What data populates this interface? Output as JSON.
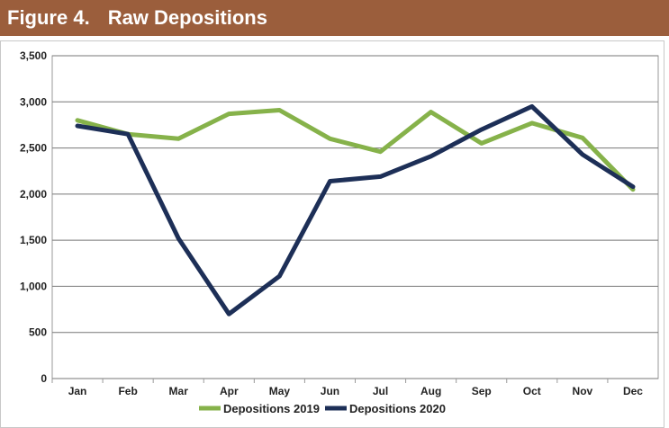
{
  "figure": {
    "number": "Figure 4.",
    "title": "Raw Depositions"
  },
  "colors": {
    "title_bar": "#9b5e3c",
    "series_2019": "#86b24a",
    "series_2020": "#1d2f57",
    "grid": "#777777"
  },
  "chart_data": {
    "type": "line",
    "title": "Raw Depositions",
    "xlabel": "",
    "ylabel": "",
    "categories": [
      "Jan",
      "Feb",
      "Mar",
      "Apr",
      "May",
      "Jun",
      "Jul",
      "Aug",
      "Sep",
      "Oct",
      "Nov",
      "Dec"
    ],
    "ylim": [
      0,
      3500
    ],
    "yticks": [
      0,
      500,
      1000,
      1500,
      2000,
      2500,
      3000,
      3500
    ],
    "ytick_labels": [
      "0",
      "500",
      "1,000",
      "1,500",
      "2,000",
      "2,500",
      "3,000",
      "3,500"
    ],
    "grid": true,
    "legend_position": "bottom",
    "series": [
      {
        "name": "Depositions 2019",
        "color": "#86b24a",
        "values": [
          2800,
          2650,
          2600,
          2870,
          2910,
          2600,
          2460,
          2890,
          2550,
          2770,
          2610,
          2050
        ]
      },
      {
        "name": "Depositions 2020",
        "color": "#1d2f57",
        "values": [
          2740,
          2650,
          1520,
          700,
          1110,
          2140,
          2190,
          2410,
          2700,
          2950,
          2430,
          2080
        ]
      }
    ]
  }
}
